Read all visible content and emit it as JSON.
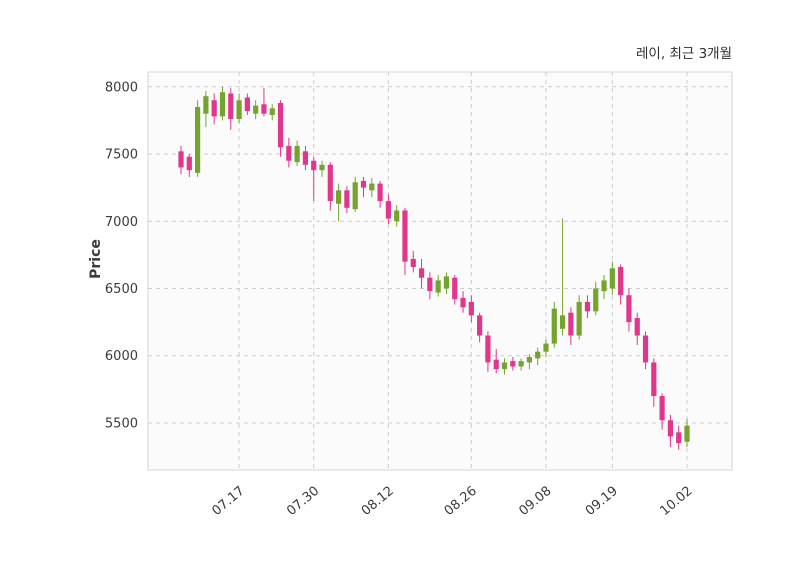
{
  "header": {
    "title": "레이, 최근 3개월"
  },
  "chart_data": {
    "type": "candlestick",
    "title": "레이, 최근 3개월",
    "xlabel": "",
    "ylabel": "Price",
    "legend": "none",
    "grid": "dashed-both-axes",
    "x_tick_labels": [
      "07.17",
      "07.30",
      "08.12",
      "08.26",
      "09.08",
      "09.19",
      "10.02"
    ],
    "x_tick_indices": [
      7,
      16,
      25,
      35,
      44,
      52,
      61
    ],
    "y_ticks": [
      5500,
      6000,
      6500,
      7000,
      7500,
      8000
    ],
    "ylim": [
      5150,
      8110
    ],
    "colors": {
      "up": "#74a32e",
      "down": "#e0368c",
      "grid": "#cccccc",
      "plot_bg": "#fbfbfb",
      "border": "#d5d5d5",
      "text": "#3b3b3b"
    },
    "candles_format": [
      "open",
      "high",
      "low",
      "close"
    ],
    "candles": [
      [
        7520,
        7560,
        7350,
        7400
      ],
      [
        7480,
        7500,
        7330,
        7380
      ],
      [
        7360,
        7900,
        7330,
        7850
      ],
      [
        7800,
        7970,
        7700,
        7930
      ],
      [
        7900,
        7950,
        7720,
        7780
      ],
      [
        7780,
        8000,
        7750,
        7960
      ],
      [
        7950,
        7990,
        7680,
        7760
      ],
      [
        7760,
        7950,
        7730,
        7900
      ],
      [
        7920,
        7950,
        7790,
        7820
      ],
      [
        7800,
        7900,
        7760,
        7860
      ],
      [
        7870,
        7990,
        7780,
        7800
      ],
      [
        7790,
        7870,
        7750,
        7840
      ],
      [
        7880,
        7900,
        7480,
        7550
      ],
      [
        7560,
        7620,
        7400,
        7450
      ],
      [
        7440,
        7600,
        7410,
        7560
      ],
      [
        7520,
        7560,
        7380,
        7420
      ],
      [
        7450,
        7480,
        7150,
        7380
      ],
      [
        7380,
        7450,
        7330,
        7420
      ],
      [
        7420,
        7440,
        7080,
        7150
      ],
      [
        7130,
        7280,
        7000,
        7230
      ],
      [
        7230,
        7260,
        7060,
        7100
      ],
      [
        7090,
        7330,
        7070,
        7290
      ],
      [
        7300,
        7330,
        7180,
        7250
      ],
      [
        7230,
        7320,
        7180,
        7280
      ],
      [
        7280,
        7300,
        7100,
        7150
      ],
      [
        7150,
        7200,
        6980,
        7020
      ],
      [
        7000,
        7120,
        6960,
        7080
      ],
      [
        7080,
        7100,
        6600,
        6700
      ],
      [
        6720,
        6780,
        6620,
        6660
      ],
      [
        6650,
        6720,
        6500,
        6580
      ],
      [
        6580,
        6620,
        6420,
        6480
      ],
      [
        6470,
        6600,
        6440,
        6560
      ],
      [
        6500,
        6620,
        6460,
        6590
      ],
      [
        6580,
        6600,
        6380,
        6420
      ],
      [
        6430,
        6480,
        6320,
        6360
      ],
      [
        6400,
        6450,
        6250,
        6300
      ],
      [
        6300,
        6320,
        6100,
        6150
      ],
      [
        6150,
        6180,
        5880,
        5950
      ],
      [
        5970,
        6050,
        5870,
        5900
      ],
      [
        5900,
        5980,
        5860,
        5950
      ],
      [
        5960,
        5990,
        5890,
        5920
      ],
      [
        5920,
        5980,
        5890,
        5960
      ],
      [
        5950,
        6010,
        5900,
        5990
      ],
      [
        5980,
        6060,
        5930,
        6030
      ],
      [
        6030,
        6120,
        5990,
        6090
      ],
      [
        6090,
        6400,
        6060,
        6350
      ],
      [
        6200,
        7020,
        6150,
        6300
      ],
      [
        6320,
        6360,
        6080,
        6150
      ],
      [
        6150,
        6450,
        6120,
        6400
      ],
      [
        6400,
        6450,
        6280,
        6330
      ],
      [
        6330,
        6550,
        6300,
        6500
      ],
      [
        6480,
        6600,
        6420,
        6560
      ],
      [
        6500,
        6700,
        6450,
        6650
      ],
      [
        6660,
        6680,
        6380,
        6450
      ],
      [
        6450,
        6500,
        6180,
        6250
      ],
      [
        6280,
        6320,
        6080,
        6150
      ],
      [
        6150,
        6180,
        5900,
        5950
      ],
      [
        5950,
        5980,
        5620,
        5700
      ],
      [
        5700,
        5720,
        5450,
        5520
      ],
      [
        5520,
        5560,
        5320,
        5400
      ],
      [
        5430,
        5480,
        5300,
        5350
      ],
      [
        5360,
        5530,
        5320,
        5480
      ]
    ]
  }
}
